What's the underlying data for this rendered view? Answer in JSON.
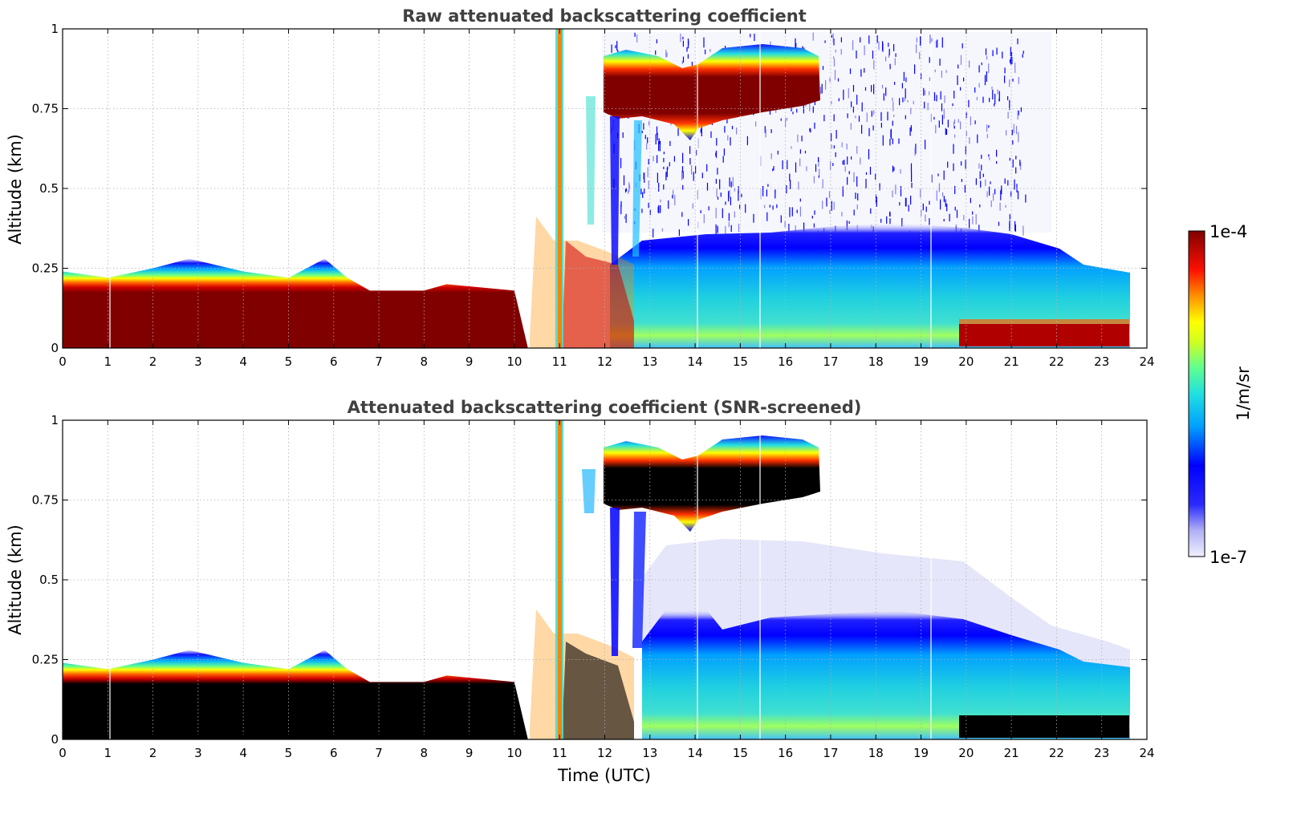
{
  "chart_data": [
    {
      "type": "heatmap",
      "title": "Raw attenuated backscattering coefficient",
      "xlabel": "",
      "ylabel": "Altitude (km)",
      "xlim": [
        0,
        24
      ],
      "ylim": [
        0,
        1
      ],
      "x_ticks": [
        "0",
        "1",
        "2",
        "3",
        "4",
        "5",
        "6",
        "7",
        "8",
        "9",
        "10",
        "11",
        "12",
        "13",
        "14",
        "15",
        "16",
        "17",
        "18",
        "19",
        "20",
        "21",
        "22",
        "23",
        "24"
      ],
      "y_ticks": [
        {
          "value": 0,
          "label": "0"
        },
        {
          "value": 0.25,
          "label": "0.25"
        },
        {
          "value": 0.5,
          "label": "0.5"
        },
        {
          "value": 0.75,
          "label": "0.75"
        },
        {
          "value": 1,
          "label": "1"
        }
      ],
      "grid": true,
      "saturated_color": "#800000",
      "features": {
        "boundary_layer_top_km": [
          {
            "x": 0,
            "y": 0.24
          },
          {
            "x": 1,
            "y": 0.22
          },
          {
            "x": 2,
            "y": 0.25
          },
          {
            "x": 2.8,
            "y": 0.28
          },
          {
            "x": 4,
            "y": 0.24
          },
          {
            "x": 5,
            "y": 0.22
          },
          {
            "x": 5.8,
            "y": 0.28
          },
          {
            "x": 6.3,
            "y": 0.22
          },
          {
            "x": 6.8,
            "y": 0.18
          },
          {
            "x": 8,
            "y": 0.18
          },
          {
            "x": 8.5,
            "y": 0.2
          },
          {
            "x": 10,
            "y": 0.18
          },
          {
            "x": 10.5,
            "y": 0.35
          },
          {
            "x": 11,
            "y": 0.32
          },
          {
            "x": 12,
            "y": 0.3
          },
          {
            "x": 13,
            "y": 0.3
          },
          {
            "x": 15,
            "y": 0.35
          },
          {
            "x": 17.5,
            "y": 0.38
          },
          {
            "x": 20,
            "y": 0.37
          },
          {
            "x": 22,
            "y": 0.28
          },
          {
            "x": 23.6,
            "y": 0.22
          }
        ],
        "cloud_layer": {
          "x_start": 12.1,
          "x_end": 16.7,
          "base_km": [
            0.7,
            0.65,
            0.72,
            0.74
          ],
          "top_km": [
            0.88,
            0.85,
            0.89,
            0.86
          ]
        },
        "data_end_time": 23.6
      }
    },
    {
      "type": "heatmap",
      "title": "Attenuated backscattering coefficient (SNR-screened)",
      "xlabel": "Time (UTC)",
      "ylabel": "Altitude (km)",
      "xlim": [
        0,
        24
      ],
      "ylim": [
        0,
        1
      ],
      "x_ticks": [
        "0",
        "1",
        "2",
        "3",
        "4",
        "5",
        "6",
        "7",
        "8",
        "9",
        "10",
        "11",
        "12",
        "13",
        "14",
        "15",
        "16",
        "17",
        "18",
        "19",
        "20",
        "21",
        "22",
        "23",
        "24"
      ],
      "y_ticks": [
        {
          "value": 0,
          "label": "0"
        },
        {
          "value": 0.25,
          "label": "0.25"
        },
        {
          "value": 0.5,
          "label": "0.5"
        },
        {
          "value": 0.75,
          "label": "0.75"
        },
        {
          "value": 1,
          "label": "1"
        }
      ],
      "grid": true,
      "saturated_color": "#000000",
      "features": {
        "data_end_time": 23.6
      }
    }
  ],
  "colorbar": {
    "label": "1/m/sr",
    "max_label": "1e-4",
    "min_label": "1e-7",
    "scale": "log",
    "colors": [
      "#e6e6fa",
      "#0000ff",
      "#00bfff",
      "#40e0d0",
      "#80ff80",
      "#ffff00",
      "#ff8000",
      "#ff0000",
      "#800000"
    ]
  }
}
